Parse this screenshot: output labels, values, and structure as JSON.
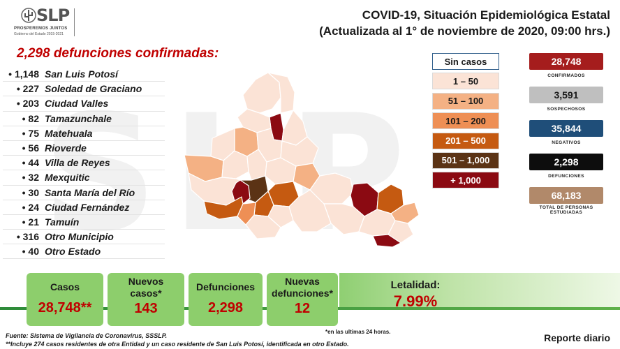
{
  "watermark": "SLP",
  "logo": {
    "brand": "SLP",
    "tagline": "PROSPEREMOS JUNTOS",
    "subtitle": "Gobierno del Estado 2015-2021"
  },
  "title": {
    "line1": "COVID-19, Situación Epidemiológica Estatal",
    "line2": "(Actualizada al 1° de noviembre de 2020, 09:00 hrs.)"
  },
  "headline": "2,298 defunciones confirmadas:",
  "deaths_list": [
    {
      "count": "• 1,148",
      "place": "San Luis Potosí"
    },
    {
      "count": "• 227",
      "place": "Soledad de Graciano"
    },
    {
      "count": "• 203",
      "place": "Ciudad Valles"
    },
    {
      "count": "• 82",
      "place": "Tamazunchale"
    },
    {
      "count": "• 75",
      "place": "Matehuala"
    },
    {
      "count": "• 56",
      "place": "Rioverde"
    },
    {
      "count": "• 44",
      "place": "Villa de Reyes"
    },
    {
      "count": "• 32",
      "place": "Mexquitic"
    },
    {
      "count": "• 30",
      "place": "Santa María del Río"
    },
    {
      "count": "• 24",
      "place": "Ciudad Fernández"
    },
    {
      "count": "• 21",
      "place": "Tamuín"
    },
    {
      "count": "• 316",
      "place": "Otro Municipio"
    },
    {
      "count": "• 40",
      "place": "Otro Estado"
    }
  ],
  "legend": [
    {
      "label": "Sin casos",
      "color": "#ffffff",
      "text_color": "#1a1a1a"
    },
    {
      "label": "1 – 50",
      "color": "#fbe3d6",
      "text_color": "#1a1a1a"
    },
    {
      "label": "51 – 100",
      "color": "#f4b184",
      "text_color": "#1a1a1a"
    },
    {
      "label": "101 – 200",
      "color": "#ee8f55",
      "text_color": "#1a1a1a"
    },
    {
      "label": "201 – 500",
      "color": "#c55a11",
      "text_color": "#ffffff"
    },
    {
      "label": "501 – 1,000",
      "color": "#5b3315",
      "text_color": "#ffffff"
    },
    {
      "label": "+ 1,000",
      "color": "#8b0a12",
      "text_color": "#ffffff"
    }
  ],
  "stats": [
    {
      "value": "28,748",
      "label": "CONFIRMADOS",
      "color": "#a51d1d",
      "text_color": "#ffffff"
    },
    {
      "value": "3,591",
      "label": "SOSPECHOSOS",
      "color": "#bfbfbf",
      "text_color": "#1a1a1a"
    },
    {
      "value": "35,844",
      "label": "NEGATIVOS",
      "color": "#1f4e79",
      "text_color": "#ffffff"
    },
    {
      "value": "2,298",
      "label": "DEFUNCIONES",
      "color": "#0d0d0d",
      "text_color": "#ffffff"
    },
    {
      "value": "68,183",
      "label": "TOTAL DE PERSONAS ESTUDIADAS",
      "color": "#b1896a",
      "text_color": "#ffffff"
    }
  ],
  "cards": {
    "casos": {
      "label": "Casos",
      "value": "28,748**"
    },
    "nuevos_casos": {
      "label_line1": "Nuevos",
      "label_line2": "casos*",
      "value": "143"
    },
    "defunciones": {
      "label": "Defunciones",
      "value": "2,298"
    },
    "nuevas_defunciones": {
      "label_line1": "Nuevas",
      "label_line2": "defunciones*",
      "value": "12"
    },
    "letalidad": {
      "label": "Letalidad:",
      "value": "7.99%"
    }
  },
  "footnotes": {
    "last24": "*en las ultimas 24 horas.",
    "source": "Fuente: Sistema de Vigilancia de Coronavirus, SSSLP.",
    "note": "**Incluye 274 casos residentes de otra Entidad y un caso residente de San Luis Potosí, identificada en otro Estado."
  },
  "report": "Reporte diario",
  "colors": {
    "accent_red": "#c00000",
    "card_green": "#8dce6c",
    "band_green": "#2e8b3a"
  }
}
